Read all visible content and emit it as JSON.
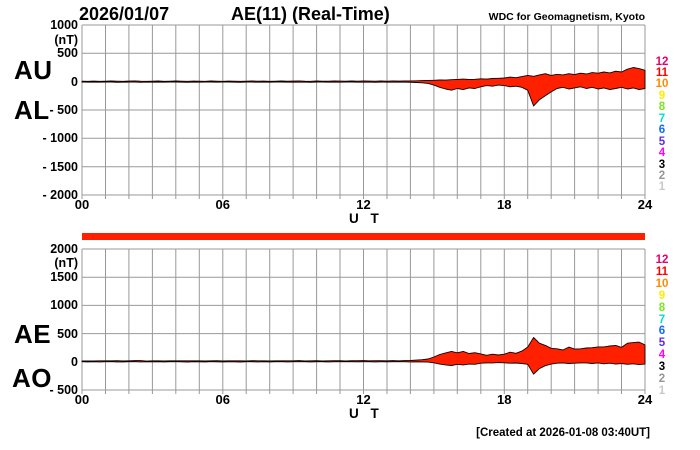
{
  "header": {
    "date": "2026/01/07",
    "title": "AE(11) (Real-Time)",
    "source": "WDC for Geomagnetism, Kyoto"
  },
  "footer": {
    "created": "[Created at 2026-01-08 03:40UT]"
  },
  "colors": {
    "trace_fill": "#ff2000",
    "trace_stroke": "#100000",
    "grid": "#999999",
    "text": "#000000"
  },
  "availability": {
    "start_hour": 0,
    "end_hour": 24,
    "color": "#ff2000"
  },
  "station_counts": {
    "values": [
      12,
      11,
      10,
      9,
      8,
      7,
      6,
      5,
      4,
      3,
      2,
      1
    ],
    "colors": [
      "#e6006e",
      "#ff0000",
      "#ff8a00",
      "#ffec00",
      "#7be520",
      "#00dfc8",
      "#0f6bff",
      "#5a2fe0",
      "#ff00ff",
      "#000000",
      "#969696",
      "#c8c8c8"
    ]
  },
  "chart_data": [
    {
      "type": "area",
      "name": "AU / AL panel",
      "xlabel": "U T",
      "ylabel": "(nT)",
      "xlim": [
        0,
        24
      ],
      "ylim": [
        -2000,
        1000
      ],
      "grid": true,
      "x_start": 0,
      "x_step": 0.25,
      "xtick_labels": [
        "00",
        "06",
        "12",
        "18",
        "24"
      ],
      "xtick_hours": [
        0,
        6,
        12,
        18,
        24
      ],
      "ytick_values": [
        1000,
        500,
        0,
        -500,
        -1000,
        -1500,
        -2000
      ],
      "ytick_labels": [
        "1000",
        "500",
        "0",
        "- 500",
        "- 1000",
        "- 1500",
        "- 2000"
      ],
      "series": [
        {
          "name": "AU",
          "values": [
            8,
            6,
            10,
            7,
            9,
            12,
            8,
            6,
            10,
            14,
            9,
            7,
            8,
            11,
            6,
            9,
            12,
            8,
            6,
            10,
            8,
            7,
            11,
            9,
            7,
            10,
            8,
            6,
            9,
            12,
            8,
            10,
            7,
            9,
            11,
            8,
            10,
            13,
            9,
            7,
            11,
            9,
            8,
            12,
            10,
            8,
            11,
            9,
            12,
            10,
            8,
            11,
            9,
            12,
            10,
            13,
            11,
            15,
            18,
            20,
            25,
            30,
            28,
            35,
            40,
            45,
            38,
            42,
            50,
            45,
            55,
            60,
            65,
            80,
            70,
            90,
            110,
            95,
            120,
            140,
            110,
            130,
            120,
            140,
            125,
            150,
            135,
            160,
            150,
            170,
            155,
            185,
            170,
            220,
            250,
            230,
            200
          ]
        },
        {
          "name": "AL",
          "values": [
            -7,
            -9,
            -6,
            -10,
            -8,
            -6,
            -11,
            -9,
            -7,
            -8,
            -12,
            -6,
            -9,
            -7,
            -10,
            -8,
            -6,
            -9,
            -11,
            -7,
            -9,
            -8,
            -6,
            -10,
            -8,
            -7,
            -9,
            -11,
            -6,
            -8,
            -10,
            -7,
            -9,
            -8,
            -6,
            -10,
            -8,
            -9,
            -7,
            -11,
            -8,
            -6,
            -10,
            -8,
            -9,
            -7,
            -8,
            -10,
            -9,
            -7,
            -11,
            -8,
            -9,
            -10,
            -8,
            -9,
            -12,
            -15,
            -20,
            -30,
            -60,
            -100,
            -130,
            -150,
            -120,
            -140,
            -110,
            -120,
            -90,
            -70,
            -80,
            -60,
            -70,
            -90,
            -80,
            -100,
            -150,
            -430,
            -320,
            -250,
            -180,
            -120,
            -100,
            -130,
            -110,
            -90,
            -120,
            -100,
            -130,
            -110,
            -140,
            -120,
            -100,
            -130,
            -110,
            -140,
            -120
          ]
        }
      ]
    },
    {
      "type": "area",
      "name": "AE / AO panel",
      "xlabel": "U T",
      "ylabel": "(nT)",
      "xlim": [
        0,
        24
      ],
      "ylim": [
        -500,
        2000
      ],
      "grid": true,
      "x_start": 0,
      "x_step": 0.25,
      "xtick_labels": [
        "00",
        "06",
        "12",
        "18",
        "24"
      ],
      "xtick_hours": [
        0,
        6,
        12,
        18,
        24
      ],
      "ytick_values": [
        2000,
        1500,
        1000,
        500,
        0,
        -500
      ],
      "ytick_labels": [
        "2000",
        "1500",
        "1000",
        "500",
        "0",
        "- 500"
      ],
      "series": [
        {
          "name": "AE",
          "values": [
            15,
            15,
            16,
            17,
            17,
            18,
            19,
            15,
            17,
            22,
            21,
            13,
            17,
            18,
            16,
            17,
            18,
            17,
            17,
            17,
            17,
            15,
            17,
            19,
            15,
            17,
            17,
            17,
            15,
            20,
            18,
            17,
            16,
            17,
            17,
            18,
            18,
            22,
            16,
            18,
            19,
            15,
            18,
            20,
            19,
            15,
            19,
            19,
            21,
            17,
            19,
            19,
            18,
            22,
            18,
            22,
            23,
            30,
            38,
            50,
            85,
            130,
            158,
            185,
            160,
            185,
            148,
            162,
            140,
            115,
            135,
            120,
            135,
            170,
            150,
            190,
            260,
            430,
            330,
            290,
            240,
            230,
            210,
            260,
            225,
            230,
            245,
            250,
            265,
            265,
            280,
            290,
            255,
            330,
            340,
            350,
            300
          ]
        },
        {
          "name": "AO",
          "values": [
            1,
            -2,
            2,
            -2,
            1,
            3,
            -2,
            -2,
            2,
            3,
            -2,
            1,
            0,
            2,
            -2,
            1,
            3,
            0,
            -3,
            2,
            0,
            -1,
            3,
            0,
            -1,
            2,
            0,
            -3,
            2,
            2,
            -1,
            2,
            -1,
            1,
            3,
            -1,
            1,
            2,
            1,
            -2,
            2,
            2,
            -1,
            2,
            1,
            1,
            2,
            0,
            2,
            2,
            -2,
            2,
            0,
            1,
            1,
            2,
            -1,
            0,
            -1,
            -5,
            -18,
            -40,
            -55,
            -65,
            -45,
            -55,
            -40,
            -45,
            -25,
            -20,
            -20,
            -15,
            -18,
            -25,
            -22,
            -30,
            -45,
            -220,
            -120,
            -70,
            -40,
            -25,
            -20,
            -30,
            -25,
            -20,
            -20,
            -30,
            -20,
            -35,
            -25,
            -40,
            -30,
            -45,
            -35,
            -50,
            -40
          ]
        }
      ]
    }
  ]
}
